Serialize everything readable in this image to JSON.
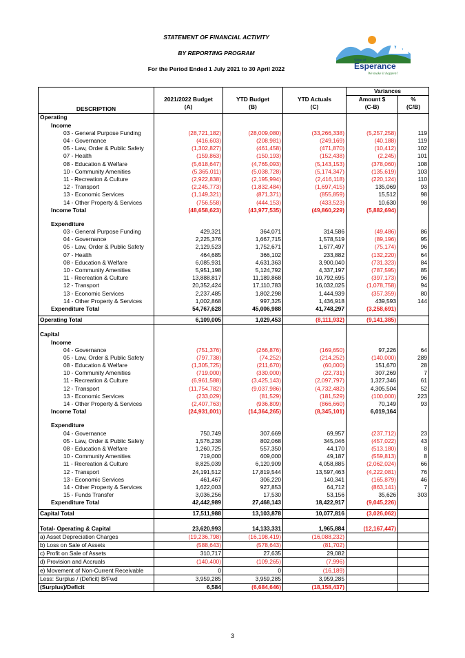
{
  "header": {
    "title": "STATEMENT OF FINANCIAL ACTIVITY",
    "subtitle": "BY REPORTING PROGRAM",
    "period": "For the Period Ended 1 July 2021 to 30 April 2022"
  },
  "logo": {
    "brand": "Esperance",
    "prefix": "Shire of",
    "tagline": "We make it happen!",
    "colors": {
      "navy": "#1b3f8b",
      "green": "#2e7d32",
      "orange": "#f39a1f",
      "sky": "#5aa7e0"
    }
  },
  "table_headers": {
    "variances": "Variances",
    "description": "DESCRIPTION",
    "budget": "2021/2022 Budget",
    "budget_code": "(A)",
    "ytd_budget": "YTD Budget",
    "ytd_budget_code": "(B)",
    "ytd_actuals": "YTD Actuals",
    "ytd_actuals_code": "(C)",
    "amount": "Amount $",
    "amount_code": "(C-B)",
    "percent": "%",
    "percent_code": "(C/B)"
  },
  "rows": [
    {
      "label": "Operating",
      "level": 1,
      "bold": true,
      "sep": true
    },
    {
      "label": "Income",
      "level": 2,
      "bold": true
    },
    {
      "label": "03 - General Purpose Funding",
      "level": 3,
      "a": "(28,721,182)",
      "b": "(28,009,080)",
      "c": "(33,266,338)",
      "d": "(5,257,258)",
      "e": "119"
    },
    {
      "label": "04 - Governance",
      "level": 3,
      "a": "(416,603)",
      "b": "(208,981)",
      "c": "(249,169)",
      "d": "(40,188)",
      "e": "119"
    },
    {
      "label": "05 - Law, Order & Public Safety",
      "level": 3,
      "a": "(1,302,827)",
      "b": "(461,458)",
      "c": "(471,870)",
      "d": "(10,412)",
      "e": "102"
    },
    {
      "label": "07 - Health",
      "level": 3,
      "a": "(159,863)",
      "b": "(150,193)",
      "c": "(152,438)",
      "d": "(2,245)",
      "e": "101"
    },
    {
      "label": "08 - Education & Welfare",
      "level": 3,
      "a": "(5,618,647)",
      "b": "(4,765,093)",
      "c": "(5,143,153)",
      "d": "(378,060)",
      "e": "108"
    },
    {
      "label": "10 - Community Amenities",
      "level": 3,
      "a": "(5,365,011)",
      "b": "(5,038,728)",
      "c": "(5,174,347)",
      "d": "(135,619)",
      "e": "103"
    },
    {
      "label": "11 - Recreation & Culture",
      "level": 3,
      "a": "(2,922,838)",
      "b": "(2,195,994)",
      "c": "(2,416,118)",
      "d": "(220,124)",
      "e": "110"
    },
    {
      "label": "12 - Transport",
      "level": 3,
      "a": "(2,245,773)",
      "b": "(1,832,484)",
      "c": "(1,697,415)",
      "d": "135,069",
      "e": "93"
    },
    {
      "label": "13 - Economic Services",
      "level": 3,
      "a": "(1,149,321)",
      "b": "(871,371)",
      "c": "(855,859)",
      "d": "15,512",
      "e": "98"
    },
    {
      "label": "14 - Other Property & Services",
      "level": 3,
      "a": "(756,558)",
      "b": "(444,153)",
      "c": "(433,523)",
      "d": "10,630",
      "e": "98"
    },
    {
      "label": "Income Total",
      "level": 2,
      "bold": true,
      "a": "(48,658,623)",
      "b": "(43,977,535)",
      "c": "(49,860,229)",
      "d": "(5,882,694)",
      "e": ""
    },
    {
      "label": "",
      "blank": true
    },
    {
      "label": "Expenditure",
      "level": 2,
      "bold": true
    },
    {
      "label": "03 - General Purpose Funding",
      "level": 3,
      "a": "429,321",
      "b": "364,071",
      "c": "314,586",
      "d": "(49,486)",
      "e": "86"
    },
    {
      "label": "04 - Governance",
      "level": 3,
      "a": "2,225,376",
      "b": "1,667,715",
      "c": "1,578,519",
      "d": "(89,196)",
      "e": "95"
    },
    {
      "label": "05 - Law, Order & Public Safety",
      "level": 3,
      "a": "2,129,523",
      "b": "1,752,671",
      "c": "1,677,497",
      "d": "(75,174)",
      "e": "96"
    },
    {
      "label": "07 - Health",
      "level": 3,
      "a": "464,685",
      "b": "366,102",
      "c": "233,882",
      "d": "(132,220)",
      "e": "64"
    },
    {
      "label": "08 - Education & Welfare",
      "level": 3,
      "a": "6,085,931",
      "b": "4,631,363",
      "c": "3,900,040",
      "d": "(731,323)",
      "e": "84"
    },
    {
      "label": "10 - Community Amenities",
      "level": 3,
      "a": "5,951,198",
      "b": "5,124,792",
      "c": "4,337,197",
      "d": "(787,595)",
      "e": "85"
    },
    {
      "label": "11 - Recreation & Culture",
      "level": 3,
      "a": "13,888,817",
      "b": "11,189,868",
      "c": "10,792,695",
      "d": "(397,173)",
      "e": "96"
    },
    {
      "label": "12 - Transport",
      "level": 3,
      "a": "20,352,424",
      "b": "17,110,783",
      "c": "16,032,025",
      "d": "(1,078,758)",
      "e": "94"
    },
    {
      "label": "13 - Economic Services",
      "level": 3,
      "a": "2,237,485",
      "b": "1,802,298",
      "c": "1,444,939",
      "d": "(357,359)",
      "e": "80"
    },
    {
      "label": "14 - Other Property & Services",
      "level": 3,
      "a": "1,002,868",
      "b": "997,325",
      "c": "1,436,918",
      "d": "439,593",
      "e": "144"
    },
    {
      "label": "Expenditure Total",
      "level": 2,
      "bold": true,
      "a": "54,767,628",
      "b": "45,006,988",
      "c": "41,748,297",
      "d": "(3,258,691)",
      "e": ""
    },
    {
      "label": "",
      "gap": true
    },
    {
      "label": "Operating Total",
      "level": 1,
      "bold": true,
      "sep": true,
      "a": "6,109,005",
      "b": "1,029,453",
      "c": "(8,111,932)",
      "d": "(9,141,385)",
      "e": ""
    },
    {
      "label": "",
      "blank": true,
      "sep": true
    },
    {
      "label": "Capital",
      "level": 1,
      "bold": true
    },
    {
      "label": "Income",
      "level": 2,
      "bold": true
    },
    {
      "label": "04 - Governance",
      "level": 3,
      "a": "(751,376)",
      "b": "(266,876)",
      "c": "(169,650)",
      "d": "97,226",
      "e": "64"
    },
    {
      "label": "05 - Law, Order & Public Safety",
      "level": 3,
      "a": "(797,738)",
      "b": "(74,252)",
      "c": "(214,252)",
      "d": "(140,000)",
      "e": "289"
    },
    {
      "label": "08 - Education & Welfare",
      "level": 3,
      "a": "(1,305,725)",
      "b": "(211,670)",
      "c": "(60,000)",
      "d": "151,670",
      "e": "28"
    },
    {
      "label": "10 - Community Amenities",
      "level": 3,
      "a": "(719,000)",
      "b": "(330,000)",
      "c": "(22,731)",
      "d": "307,269",
      "e": "7"
    },
    {
      "label": "11 - Recreation & Culture",
      "level": 3,
      "a": "(6,961,588)",
      "b": "(3,425,143)",
      "c": "(2,097,797)",
      "d": "1,327,346",
      "e": "61"
    },
    {
      "label": "12 - Transport",
      "level": 3,
      "a": "(11,754,782)",
      "b": "(9,037,986)",
      "c": "(4,732,482)",
      "d": "4,305,504",
      "e": "52"
    },
    {
      "label": "13 - Economic Services",
      "level": 3,
      "a": "(233,029)",
      "b": "(81,529)",
      "c": "(181,529)",
      "d": "(100,000)",
      "e": "223"
    },
    {
      "label": "14 - Other Property & Services",
      "level": 3,
      "a": "(2,407,763)",
      "b": "(936,809)",
      "c": "(866,660)",
      "d": "70,149",
      "e": "93"
    },
    {
      "label": "Income Total",
      "level": 2,
      "bold": true,
      "a": "(24,931,001)",
      "b": "(14,364,265)",
      "c": "(8,345,101)",
      "d": "6,019,164",
      "e": ""
    },
    {
      "label": "",
      "blank": true
    },
    {
      "label": "Expenditure",
      "level": 2,
      "bold": true
    },
    {
      "label": "04 - Governance",
      "level": 3,
      "a": "750,749",
      "b": "307,669",
      "c": "69,957",
      "d": "(237,712)",
      "e": "23"
    },
    {
      "label": "05 - Law, Order & Public Safety",
      "level": 3,
      "a": "1,576,238",
      "b": "802,068",
      "c": "345,046",
      "d": "(457,022)",
      "e": "43"
    },
    {
      "label": "08 - Education & Welfare",
      "level": 3,
      "a": "1,260,725",
      "b": "557,350",
      "c": "44,170",
      "d": "(513,180)",
      "e": "8"
    },
    {
      "label": "10 - Community Amenities",
      "level": 3,
      "a": "719,000",
      "b": "609,000",
      "c": "49,187",
      "d": "(559,813)",
      "e": "8"
    },
    {
      "label": "11 - Recreation & Culture",
      "level": 3,
      "a": "8,825,039",
      "b": "6,120,909",
      "c": "4,058,885",
      "d": "(2,062,024)",
      "e": "66"
    },
    {
      "label": "12 - Transport",
      "level": 3,
      "a": "24,191,512",
      "b": "17,819,544",
      "c": "13,597,463",
      "d": "(4,222,081)",
      "e": "76"
    },
    {
      "label": "13 - Economic Services",
      "level": 3,
      "a": "461,467",
      "b": "306,220",
      "c": "140,341",
      "d": "(165,879)",
      "e": "46"
    },
    {
      "label": "14 - Other Property & Services",
      "level": 3,
      "a": "1,622,003",
      "b": "927,853",
      "c": "64,712",
      "d": "(863,141)",
      "e": "7"
    },
    {
      "label": "15 - Funds Transfer",
      "level": 3,
      "a": "3,036,256",
      "b": "17,530",
      "c": "53,156",
      "d": "35,626",
      "e": "303"
    },
    {
      "label": "Expenditure Total",
      "level": 2,
      "bold": true,
      "a": "42,442,989",
      "b": "27,468,143",
      "c": "18,422,917",
      "d": "(9,045,226)",
      "e": ""
    },
    {
      "label": "",
      "gap": true
    },
    {
      "label": "Capital Total",
      "level": 1,
      "bold": true,
      "sep": true,
      "a": "17,511,988",
      "b": "13,103,878",
      "c": "10,077,816",
      "d": "(3,026,062)",
      "e": ""
    },
    {
      "label": "",
      "blank": true,
      "sep": true
    },
    {
      "label": "Total- Operating & Capital",
      "level": 1,
      "bold": true,
      "a": "23,620,993",
      "b": "14,133,331",
      "c": "1,965,884",
      "d": "(12,167,447)",
      "e": ""
    },
    {
      "label": "a) Asset Depreciation Charges",
      "level": 1,
      "sep": true,
      "a": "(19,236,798)",
      "b": "(16,198,419)",
      "c": "(16,088,232)",
      "d": "",
      "e": ""
    },
    {
      "label": "b) Loss on Sale of Assets",
      "level": 1,
      "sep": true,
      "a": "(588,643)",
      "b": "(578,643)",
      "c": "(81,702)",
      "d": "",
      "e": ""
    },
    {
      "label": "c) Profit on Sale of Assets",
      "level": 1,
      "sep": true,
      "a": "310,717",
      "b": "27,635",
      "c": "29,082",
      "d": "",
      "e": ""
    },
    {
      "label": "d) Provision and Accruals",
      "level": 1,
      "sep": true,
      "a": "(140,400)",
      "b": "(109,265)",
      "c": "(7,996)",
      "d": "",
      "e": ""
    },
    {
      "label": "e) Movement of Non-Current Receivable",
      "level": 1,
      "sep": true,
      "a": "0",
      "b": "0",
      "c": "(16,189)",
      "d": "",
      "e": ""
    },
    {
      "label": "Less: Surplus / (Deficit) B/Fwd",
      "level": 1,
      "sep": true,
      "a": "3,959,285",
      "b": "3,959,285",
      "c": "3,959,285",
      "d": "",
      "e": ""
    },
    {
      "label": "(Surplus)/Deficit",
      "level": 1,
      "bold": true,
      "sep": true,
      "last": true,
      "a": "6,584",
      "b": "(6,684,646)",
      "c": "(18,158,437)",
      "d": "",
      "e": ""
    }
  ],
  "footer": {
    "page_number": "3"
  }
}
